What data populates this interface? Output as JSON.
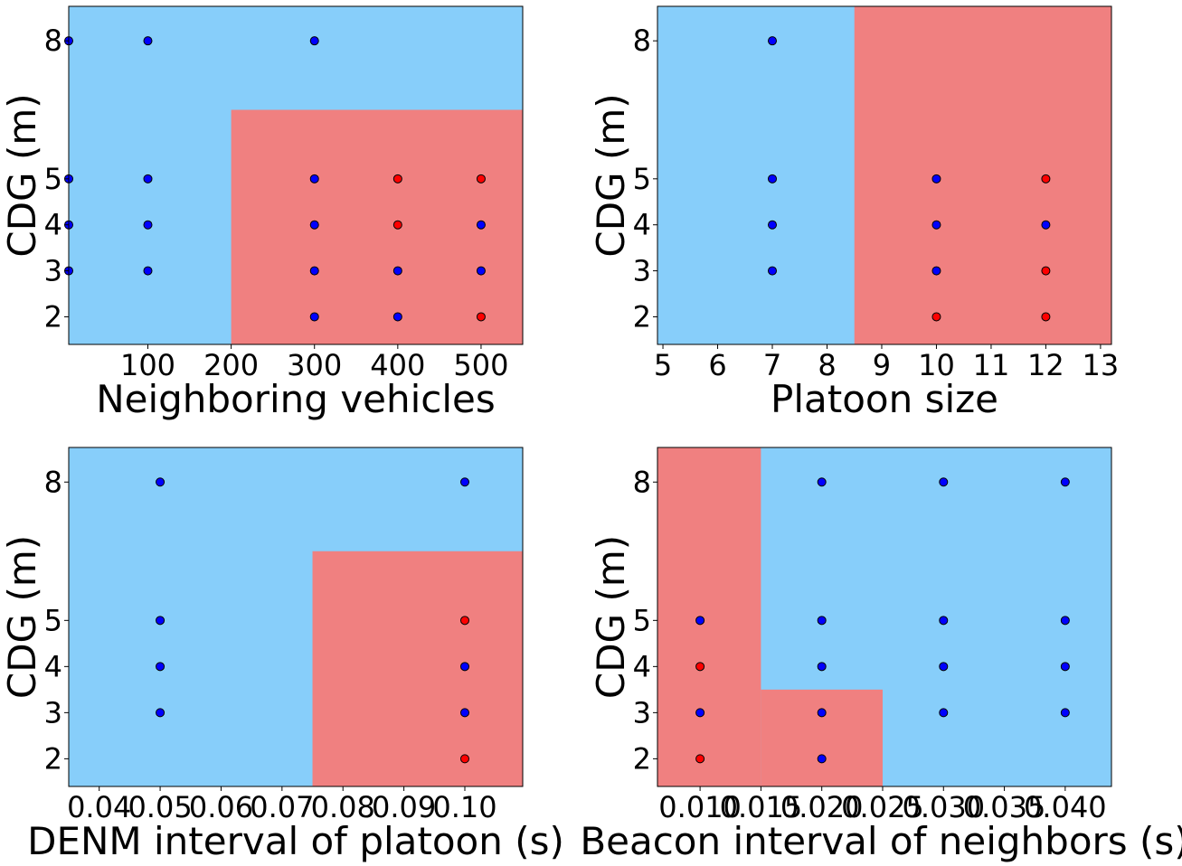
{
  "colors": {
    "region_blue": "#87CEFA",
    "region_red": "#F08080",
    "point_blue": "#0000FF",
    "point_red": "#FF0000",
    "point_edge": "#000000"
  },
  "chart_data": [
    {
      "type": "scatter",
      "xlabel": "Neighboring vehicles",
      "ylabel": "CDG (m)",
      "xlim": [
        5,
        550
      ],
      "ylim": [
        1.4,
        8.75
      ],
      "xticks": [
        100,
        200,
        300,
        400,
        500
      ],
      "xtick_labels": [
        "100",
        "200",
        "300",
        "400",
        "500"
      ],
      "yticks": [
        2,
        3,
        4,
        5,
        8
      ],
      "ytick_labels": [
        "2",
        "3",
        "4",
        "5",
        "8"
      ],
      "regions": [
        {
          "class": "blue",
          "x": [
            5,
            550
          ],
          "y": [
            1.4,
            8.75
          ]
        },
        {
          "class": "red",
          "x": [
            200,
            550
          ],
          "y": [
            1.4,
            6.5
          ]
        }
      ],
      "points": [
        {
          "x": 5,
          "y": 8,
          "class": "blue"
        },
        {
          "x": 5,
          "y": 5,
          "class": "blue"
        },
        {
          "x": 5,
          "y": 4,
          "class": "blue"
        },
        {
          "x": 5,
          "y": 3,
          "class": "blue"
        },
        {
          "x": 100,
          "y": 8,
          "class": "blue"
        },
        {
          "x": 100,
          "y": 5,
          "class": "blue"
        },
        {
          "x": 100,
          "y": 4,
          "class": "blue"
        },
        {
          "x": 100,
          "y": 3,
          "class": "blue"
        },
        {
          "x": 300,
          "y": 8,
          "class": "blue"
        },
        {
          "x": 300,
          "y": 5,
          "class": "blue"
        },
        {
          "x": 300,
          "y": 4,
          "class": "blue"
        },
        {
          "x": 300,
          "y": 3,
          "class": "blue"
        },
        {
          "x": 300,
          "y": 2,
          "class": "blue"
        },
        {
          "x": 400,
          "y": 5,
          "class": "red"
        },
        {
          "x": 400,
          "y": 4,
          "class": "red"
        },
        {
          "x": 400,
          "y": 3,
          "class": "blue"
        },
        {
          "x": 400,
          "y": 2,
          "class": "blue"
        },
        {
          "x": 500,
          "y": 5,
          "class": "red"
        },
        {
          "x": 500,
          "y": 4,
          "class": "blue"
        },
        {
          "x": 500,
          "y": 3,
          "class": "blue"
        },
        {
          "x": 500,
          "y": 2,
          "class": "red"
        }
      ]
    },
    {
      "type": "scatter",
      "xlabel": "Platoon size",
      "ylabel": "CDG (m)",
      "xlim": [
        4.9,
        13.2
      ],
      "ylim": [
        1.4,
        8.75
      ],
      "xticks": [
        5,
        6,
        7,
        8,
        9,
        10,
        11,
        12,
        13
      ],
      "xtick_labels": [
        "5",
        "6",
        "7",
        "8",
        "9",
        "10",
        "11",
        "12",
        "13"
      ],
      "yticks": [
        2,
        3,
        4,
        5,
        8
      ],
      "ytick_labels": [
        "2",
        "3",
        "4",
        "5",
        "8"
      ],
      "regions": [
        {
          "class": "blue",
          "x": [
            4.9,
            13.2
          ],
          "y": [
            1.4,
            8.75
          ]
        },
        {
          "class": "red",
          "x": [
            8.5,
            13.2
          ],
          "y": [
            1.4,
            8.75
          ]
        }
      ],
      "points": [
        {
          "x": 7,
          "y": 8,
          "class": "blue"
        },
        {
          "x": 7,
          "y": 5,
          "class": "blue"
        },
        {
          "x": 7,
          "y": 4,
          "class": "blue"
        },
        {
          "x": 7,
          "y": 3,
          "class": "blue"
        },
        {
          "x": 10,
          "y": 5,
          "class": "blue"
        },
        {
          "x": 10,
          "y": 4,
          "class": "blue"
        },
        {
          "x": 10,
          "y": 3,
          "class": "blue"
        },
        {
          "x": 10,
          "y": 2,
          "class": "red"
        },
        {
          "x": 12,
          "y": 5,
          "class": "red"
        },
        {
          "x": 12,
          "y": 4,
          "class": "blue"
        },
        {
          "x": 12,
          "y": 3,
          "class": "red"
        },
        {
          "x": 12,
          "y": 2,
          "class": "red"
        }
      ]
    },
    {
      "type": "scatter",
      "xlabel": "DENM interval of platoon (s)",
      "ylabel": "CDG (m)",
      "xlim": [
        0.035,
        0.1095
      ],
      "ylim": [
        1.4,
        8.75
      ],
      "xticks": [
        0.04,
        0.05,
        0.06,
        0.07,
        0.08,
        0.09,
        0.1
      ],
      "xtick_labels": [
        "0.04",
        "0.05",
        "0.06",
        "0.07",
        "0.08",
        "0.09",
        "0.10"
      ],
      "yticks": [
        2,
        3,
        4,
        5,
        8
      ],
      "ytick_labels": [
        "2",
        "3",
        "4",
        "5",
        "8"
      ],
      "regions": [
        {
          "class": "blue",
          "x": [
            0.035,
            0.1095
          ],
          "y": [
            1.4,
            8.75
          ]
        },
        {
          "class": "red",
          "x": [
            0.075,
            0.1095
          ],
          "y": [
            1.4,
            6.5
          ]
        }
      ],
      "points": [
        {
          "x": 0.05,
          "y": 8,
          "class": "blue"
        },
        {
          "x": 0.05,
          "y": 5,
          "class": "blue"
        },
        {
          "x": 0.05,
          "y": 4,
          "class": "blue"
        },
        {
          "x": 0.05,
          "y": 3,
          "class": "blue"
        },
        {
          "x": 0.1,
          "y": 8,
          "class": "blue"
        },
        {
          "x": 0.1,
          "y": 5,
          "class": "red"
        },
        {
          "x": 0.1,
          "y": 4,
          "class": "blue"
        },
        {
          "x": 0.1,
          "y": 3,
          "class": "blue"
        },
        {
          "x": 0.1,
          "y": 2,
          "class": "red"
        }
      ]
    },
    {
      "type": "scatter",
      "xlabel": "Beacon interval of neighbors (s)",
      "ylabel": "CDG (m)",
      "xlim": [
        0.0065,
        0.0438
      ],
      "ylim": [
        1.4,
        8.75
      ],
      "xticks": [
        0.01,
        0.015,
        0.02,
        0.025,
        0.03,
        0.035,
        0.04
      ],
      "xtick_labels": [
        "0.010",
        "0.015",
        "0.020",
        "0.025",
        "0.030",
        "0.035",
        "0.040"
      ],
      "yticks": [
        2,
        3,
        4,
        5,
        8
      ],
      "ytick_labels": [
        "2",
        "3",
        "4",
        "5",
        "8"
      ],
      "regions": [
        {
          "class": "blue",
          "x": [
            0.0065,
            0.0438
          ],
          "y": [
            1.4,
            8.75
          ]
        },
        {
          "class": "red",
          "x": [
            0.0065,
            0.015
          ],
          "y": [
            1.4,
            8.75
          ]
        },
        {
          "class": "red",
          "x": [
            0.015,
            0.025
          ],
          "y": [
            1.4,
            3.5
          ]
        }
      ],
      "points": [
        {
          "x": 0.01,
          "y": 5,
          "class": "blue"
        },
        {
          "x": 0.01,
          "y": 4,
          "class": "red"
        },
        {
          "x": 0.01,
          "y": 3,
          "class": "blue"
        },
        {
          "x": 0.01,
          "y": 2,
          "class": "red"
        },
        {
          "x": 0.02,
          "y": 8,
          "class": "blue"
        },
        {
          "x": 0.02,
          "y": 5,
          "class": "blue"
        },
        {
          "x": 0.02,
          "y": 4,
          "class": "blue"
        },
        {
          "x": 0.02,
          "y": 3,
          "class": "blue"
        },
        {
          "x": 0.02,
          "y": 2,
          "class": "blue"
        },
        {
          "x": 0.03,
          "y": 8,
          "class": "blue"
        },
        {
          "x": 0.03,
          "y": 5,
          "class": "blue"
        },
        {
          "x": 0.03,
          "y": 4,
          "class": "blue"
        },
        {
          "x": 0.03,
          "y": 3,
          "class": "blue"
        },
        {
          "x": 0.04,
          "y": 8,
          "class": "blue"
        },
        {
          "x": 0.04,
          "y": 5,
          "class": "blue"
        },
        {
          "x": 0.04,
          "y": 4,
          "class": "blue"
        },
        {
          "x": 0.04,
          "y": 3,
          "class": "blue"
        }
      ]
    }
  ]
}
